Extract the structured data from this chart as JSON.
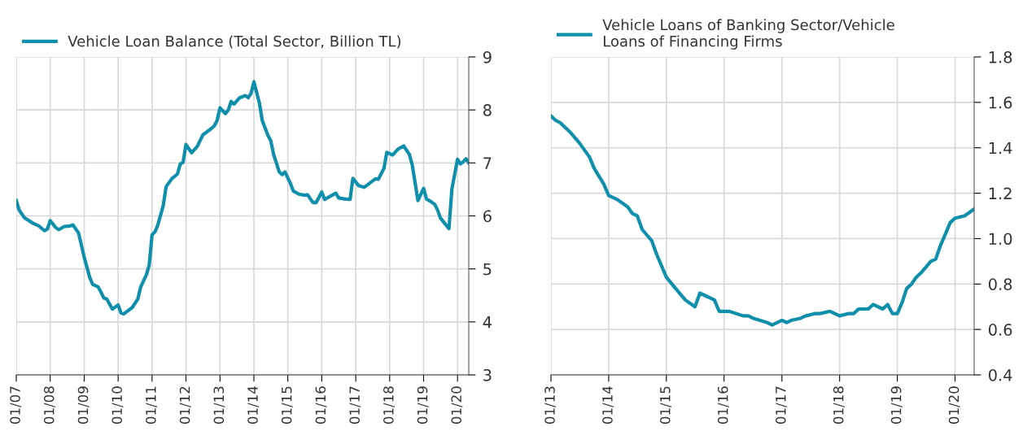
{
  "chart_data": [
    {
      "type": "line",
      "legend": "top left",
      "grid": true,
      "line_style": "solid",
      "marker": "none",
      "xlim": [
        "2007-01",
        "2020-05"
      ],
      "ylim": [
        3,
        9
      ],
      "yticks": [
        3,
        4,
        5,
        6,
        7,
        8,
        9
      ],
      "xticks": [
        {
          "value": "2007-01",
          "label": "01/07"
        },
        {
          "value": "2008-01",
          "label": "01/08"
        },
        {
          "value": "2009-01",
          "label": "01/09"
        },
        {
          "value": "2010-01",
          "label": "01/10"
        },
        {
          "value": "2011-01",
          "label": "01/11"
        },
        {
          "value": "2012-01",
          "label": "01/12"
        },
        {
          "value": "2013-01",
          "label": "01/13"
        },
        {
          "value": "2014-01",
          "label": "01/14"
        },
        {
          "value": "2015-01",
          "label": "01/15"
        },
        {
          "value": "2016-01",
          "label": "01/16"
        },
        {
          "value": "2017-01",
          "label": "01/17"
        },
        {
          "value": "2018-01",
          "label": "01/18"
        },
        {
          "value": "2019-01",
          "label": "01/19"
        },
        {
          "value": "2020-01",
          "label": "01/20"
        }
      ],
      "series": [
        {
          "name": "Vehicle Loan Balance (Total Sector, Billion TL)",
          "color": "#0e8fac",
          "x": [
            "2007-01",
            "2007-02",
            "2007-04",
            "2007-07",
            "2007-09",
            "2007-11",
            "2007-12",
            "2008-01",
            "2008-03",
            "2008-04",
            "2008-06",
            "2008-08",
            "2008-09",
            "2008-11",
            "2009-01",
            "2009-03",
            "2009-04",
            "2009-06",
            "2009-08",
            "2009-09",
            "2009-11",
            "2010-01",
            "2010-02",
            "2010-03",
            "2010-06",
            "2010-08",
            "2010-09",
            "2010-11",
            "2010-12",
            "2011-01",
            "2011-02",
            "2011-03",
            "2011-05",
            "2011-06",
            "2011-08",
            "2011-10",
            "2011-11",
            "2011-12",
            "2012-01",
            "2012-03",
            "2012-05",
            "2012-07",
            "2012-10",
            "2012-11",
            "2012-12",
            "2013-01",
            "2013-03",
            "2013-04",
            "2013-05",
            "2013-06",
            "2013-08",
            "2013-10",
            "2013-11",
            "2013-12",
            "2014-01",
            "2014-03",
            "2014-04",
            "2014-06",
            "2014-07",
            "2014-08",
            "2014-10",
            "2014-11",
            "2014-12",
            "2015-02",
            "2015-03",
            "2015-05",
            "2015-07",
            "2015-08",
            "2015-09",
            "2015-10",
            "2015-11",
            "2016-01",
            "2016-02",
            "2016-04",
            "2016-06",
            "2016-07",
            "2016-09",
            "2016-11",
            "2016-12",
            "2017-02",
            "2017-04",
            "2017-06",
            "2017-08",
            "2017-09",
            "2017-11",
            "2017-12",
            "2018-02",
            "2018-04",
            "2018-06",
            "2018-08",
            "2018-09",
            "2018-11",
            "2019-01",
            "2019-02",
            "2019-03",
            "2019-05",
            "2019-06",
            "2019-07",
            "2019-10",
            "2019-11",
            "2020-01",
            "2020-02",
            "2020-03",
            "2020-04",
            "2020-05"
          ],
          "values": [
            6.29,
            6.11,
            5.96,
            5.86,
            5.81,
            5.72,
            5.75,
            5.91,
            5.78,
            5.74,
            5.8,
            5.81,
            5.83,
            5.68,
            5.22,
            4.84,
            4.71,
            4.66,
            4.45,
            4.43,
            4.24,
            4.32,
            4.17,
            4.15,
            4.27,
            4.43,
            4.66,
            4.89,
            5.07,
            5.64,
            5.7,
            5.81,
            6.19,
            6.55,
            6.7,
            6.79,
            6.98,
            7.01,
            7.35,
            7.19,
            7.31,
            7.53,
            7.65,
            7.7,
            7.8,
            8.04,
            7.93,
            8.0,
            8.16,
            8.11,
            8.23,
            8.27,
            8.23,
            8.31,
            8.53,
            8.13,
            7.8,
            7.52,
            7.42,
            7.16,
            6.83,
            6.78,
            6.83,
            6.6,
            6.47,
            6.41,
            6.39,
            6.4,
            6.32,
            6.25,
            6.25,
            6.45,
            6.31,
            6.37,
            6.43,
            6.34,
            6.32,
            6.31,
            6.71,
            6.57,
            6.54,
            6.62,
            6.7,
            6.69,
            6.9,
            7.2,
            7.15,
            7.26,
            7.32,
            7.16,
            6.96,
            6.29,
            6.52,
            6.32,
            6.29,
            6.22,
            6.11,
            5.96,
            5.76,
            6.5,
            7.07,
            6.98,
            7.02,
            7.08,
            7.0
          ]
        }
      ]
    },
    {
      "type": "line",
      "legend": "top left",
      "grid": true,
      "line_style": "solid",
      "marker": "none",
      "xlim": [
        "2013-01",
        "2020-05"
      ],
      "ylim": [
        0.4,
        1.8
      ],
      "yticks": [
        {
          "value": 0.4,
          "label": "0.4"
        },
        {
          "value": 0.6,
          "label": "0.6"
        },
        {
          "value": 0.8,
          "label": "0.8"
        },
        {
          "value": 1.0,
          "label": "1.0"
        },
        {
          "value": 1.2,
          "label": "1.2"
        },
        {
          "value": 1.4,
          "label": "1.4"
        },
        {
          "value": 1.6,
          "label": "1.6"
        },
        {
          "value": 1.8,
          "label": "1.8"
        }
      ],
      "xticks": [
        {
          "value": "2013-01",
          "label": "01/13"
        },
        {
          "value": "2014-01",
          "label": "01/14"
        },
        {
          "value": "2015-01",
          "label": "01/15"
        },
        {
          "value": "2016-01",
          "label": "01/16"
        },
        {
          "value": "2017-01",
          "label": "01/17"
        },
        {
          "value": "2018-01",
          "label": "01/18"
        },
        {
          "value": "2019-01",
          "label": "01/19"
        },
        {
          "value": "2020-01",
          "label": "01/20"
        }
      ],
      "series": [
        {
          "name": "Vehicle Loans of Banking Sector/Vehicle\nLoans of Financing Firms",
          "color": "#0e8fac",
          "x": [
            "2013-01",
            "2013-02",
            "2013-03",
            "2013-05",
            "2013-07",
            "2013-09",
            "2013-10",
            "2013-12",
            "2014-01",
            "2014-03",
            "2014-05",
            "2014-06",
            "2014-07",
            "2014-08",
            "2014-10",
            "2014-11",
            "2015-01",
            "2015-03",
            "2015-05",
            "2015-07",
            "2015-08",
            "2015-09",
            "2015-11",
            "2015-12",
            "2016-02",
            "2016-05",
            "2016-06",
            "2016-07",
            "2016-10",
            "2016-11",
            "2017-01",
            "2017-02",
            "2017-03",
            "2017-05",
            "2017-06",
            "2017-08",
            "2017-09",
            "2017-11",
            "2017-12",
            "2018-01",
            "2018-03",
            "2018-04",
            "2018-05",
            "2018-07",
            "2018-08",
            "2018-10",
            "2018-11",
            "2018-12",
            "2019-01",
            "2019-02",
            "2019-03",
            "2019-04",
            "2019-05",
            "2019-06",
            "2019-08",
            "2019-09",
            "2019-10",
            "2019-11",
            "2019-12",
            "2020-01",
            "2020-03",
            "2020-05"
          ],
          "values": [
            1.54,
            1.52,
            1.51,
            1.47,
            1.42,
            1.36,
            1.31,
            1.24,
            1.19,
            1.17,
            1.14,
            1.11,
            1.1,
            1.04,
            0.99,
            0.93,
            0.83,
            0.78,
            0.73,
            0.7,
            0.76,
            0.75,
            0.73,
            0.68,
            0.68,
            0.66,
            0.66,
            0.65,
            0.63,
            0.62,
            0.64,
            0.63,
            0.64,
            0.65,
            0.66,
            0.67,
            0.67,
            0.68,
            0.67,
            0.66,
            0.67,
            0.67,
            0.69,
            0.69,
            0.71,
            0.69,
            0.71,
            0.67,
            0.67,
            0.72,
            0.78,
            0.8,
            0.83,
            0.85,
            0.9,
            0.91,
            0.97,
            1.02,
            1.07,
            1.09,
            1.1,
            1.13
          ]
        }
      ]
    }
  ]
}
